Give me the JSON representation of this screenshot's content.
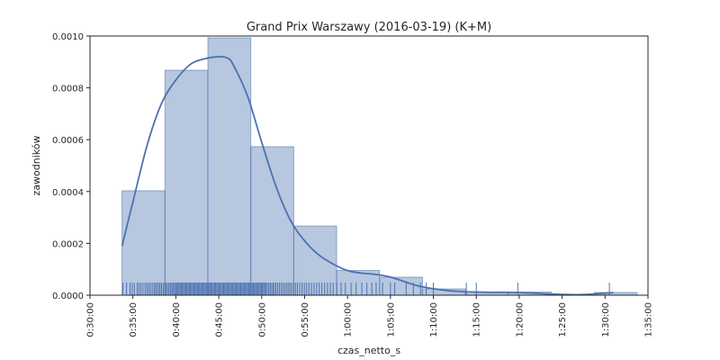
{
  "chart_data": {
    "type": "histogram",
    "title": "Grand Prix Warszawy (2016-03-19) (K+M)",
    "xlabel": "czas_netto_s",
    "ylabel": "zawodników",
    "xlim": [
      1800,
      5700
    ],
    "ylim": [
      0,
      0.001
    ],
    "grid": false,
    "x_ticks": [
      {
        "value": 1800,
        "label": "0:30:00"
      },
      {
        "value": 2100,
        "label": "0:35:00"
      },
      {
        "value": 2400,
        "label": "0:40:00"
      },
      {
        "value": 2700,
        "label": "0:45:00"
      },
      {
        "value": 3000,
        "label": "0:50:00"
      },
      {
        "value": 3300,
        "label": "0:55:00"
      },
      {
        "value": 3600,
        "label": "1:00:00"
      },
      {
        "value": 3900,
        "label": "1:05:00"
      },
      {
        "value": 4200,
        "label": "1:10:00"
      },
      {
        "value": 4500,
        "label": "1:15:00"
      },
      {
        "value": 4800,
        "label": "1:20:00"
      },
      {
        "value": 5100,
        "label": "1:25:00"
      },
      {
        "value": 5400,
        "label": "1:30:00"
      },
      {
        "value": 5700,
        "label": "1:35:00"
      }
    ],
    "y_ticks": [
      {
        "value": 0,
        "label": "0.0000"
      },
      {
        "value": 0.0002,
        "label": "0.0002"
      },
      {
        "value": 0.0004,
        "label": "0.0004"
      },
      {
        "value": 0.0006,
        "label": "0.0006"
      },
      {
        "value": 0.0008,
        "label": "0.0008"
      },
      {
        "value": 0.001,
        "label": "0.0010"
      }
    ],
    "bins": [
      {
        "start": 2024,
        "end": 2324,
        "density": 0.000403
      },
      {
        "start": 2324,
        "end": 2624,
        "density": 0.000868
      },
      {
        "start": 2624,
        "end": 2924,
        "density": 0.000993
      },
      {
        "start": 2924,
        "end": 3224,
        "density": 0.000573
      },
      {
        "start": 3224,
        "end": 3524,
        "density": 0.000267
      },
      {
        "start": 3524,
        "end": 3824,
        "density": 9.55e-05
      },
      {
        "start": 3824,
        "end": 4124,
        "density": 6.95e-05
      },
      {
        "start": 4124,
        "end": 4424,
        "density": 2.43e-05
      },
      {
        "start": 4424,
        "end": 4724,
        "density": 1.21e-05
      },
      {
        "start": 4724,
        "end": 5024,
        "density": 1.21e-05
      },
      {
        "start": 5024,
        "end": 5324,
        "density": 0.0
      },
      {
        "start": 5324,
        "end": 5624,
        "density": 1.04e-05
      }
    ],
    "kde": {
      "x": [
        2024,
        2100,
        2200,
        2300,
        2400,
        2500,
        2600,
        2700,
        2760,
        2800,
        2900,
        3000,
        3100,
        3200,
        3300,
        3400,
        3500,
        3600,
        3700,
        3800,
        3900,
        4000,
        4100,
        4200,
        4300,
        4400,
        4500,
        4600,
        4700,
        4800,
        4900,
        5000,
        5100,
        5200,
        5300,
        5400,
        5460
      ],
      "y": [
        0.00019,
        0.00036,
        0.00058,
        0.00074,
        0.00083,
        0.00089,
        0.000912,
        0.00092,
        0.000915,
        0.00089,
        0.00077,
        0.00059,
        0.00042,
        0.00029,
        0.00021,
        0.000155,
        0.00012,
        9.5e-05,
        8.5e-05,
        8e-05,
        7e-05,
        5.2e-05,
        3.5e-05,
        2.5e-05,
        1.8e-05,
        1.4e-05,
        1.2e-05,
        1.1e-05,
        1.1e-05,
        1e-05,
        8e-06,
        5e-06,
        3e-06,
        2e-06,
        4e-06,
        8e-06,
        1e-05
      ]
    },
    "rug": [
      2030,
      2055,
      2080,
      2095,
      2110,
      2130,
      2142,
      2155,
      2170,
      2185,
      2198,
      2210,
      2222,
      2235,
      2248,
      2258,
      2268,
      2280,
      2290,
      2300,
      2312,
      2322,
      2332,
      2342,
      2352,
      2362,
      2372,
      2380,
      2390,
      2398,
      2406,
      2414,
      2422,
      2430,
      2438,
      2446,
      2454,
      2462,
      2470,
      2478,
      2486,
      2494,
      2502,
      2510,
      2518,
      2526,
      2534,
      2542,
      2550,
      2558,
      2566,
      2574,
      2582,
      2590,
      2598,
      2606,
      2614,
      2622,
      2630,
      2638,
      2646,
      2654,
      2662,
      2670,
      2678,
      2686,
      2694,
      2702,
      2710,
      2718,
      2726,
      2734,
      2742,
      2750,
      2758,
      2766,
      2774,
      2782,
      2790,
      2798,
      2806,
      2814,
      2822,
      2830,
      2838,
      2846,
      2854,
      2862,
      2870,
      2878,
      2886,
      2894,
      2902,
      2910,
      2918,
      2926,
      2934,
      2942,
      2950,
      2958,
      2966,
      2974,
      2982,
      2990,
      2998,
      3006,
      3014,
      3022,
      3030,
      3040,
      3050,
      3060,
      3070,
      3080,
      3090,
      3100,
      3112,
      3124,
      3136,
      3148,
      3160,
      3172,
      3184,
      3196,
      3208,
      3222,
      3236,
      3250,
      3266,
      3282,
      3298,
      3314,
      3330,
      3348,
      3366,
      3384,
      3402,
      3420,
      3440,
      3460,
      3480,
      3500,
      3525,
      3555,
      3585,
      3625,
      3660,
      3700,
      3735,
      3770,
      3800,
      3845,
      3900,
      3930,
      4010,
      4060,
      4110,
      4150,
      4200,
      4430,
      4500,
      4790,
      5430
    ]
  }
}
